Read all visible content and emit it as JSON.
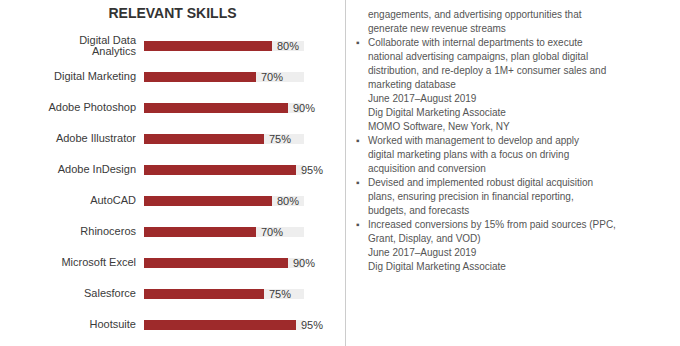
{
  "chart_data": {
    "type": "bar",
    "orientation": "horizontal",
    "title": "RELEVANT SKILLS",
    "categories": [
      "Digital Data Analytics",
      "Digital Marketing",
      "Adobe Photoshop",
      "Adobe Illustrator",
      "Adobe InDesign",
      "AutoCAD",
      "Rhinoceros",
      "Microsoft Excel",
      "Salesforce",
      "Hootsuite"
    ],
    "values": [
      80,
      70,
      90,
      75,
      95,
      80,
      70,
      90,
      75,
      95
    ],
    "value_labels": [
      "80%",
      "70%",
      "90%",
      "75%",
      "95%",
      "80%",
      "70%",
      "90%",
      "75%",
      "95%"
    ],
    "data_labels": true,
    "color": "#9e2a2b",
    "xlim": [
      0,
      100
    ],
    "tick_labels": "y",
    "grid": false,
    "annotations": [
      "engagements, and advertising opportunities that",
      "generate new revenue streams",
      "▪",
      "Collaborate with internal departments to execute",
      "national advertising campaigns, plan global digital",
      "distribution, and re-deploy a 1M+ consumer sales and",
      "marketing database",
      "June 2017–August 2019",
      "Dig Digital Marketing Associate",
      "MOMO Software, New York, NY",
      "▪",
      "Worked with management to develop and apply",
      "digital marketing plans with a focus on driving",
      "acquisition and conversion",
      "▪",
      "Devised and implemented robust digital acquisition",
      "plans, ensuring precision in financial reporting,",
      "budgets, and forecasts",
      "▪",
      "Increased conversions by 15% from paid sources (PPC,",
      "Grant, Display, and VOD)",
      "June 2017–August 2019",
      "Dig Digital Marketing Associate"
    ]
  }
}
